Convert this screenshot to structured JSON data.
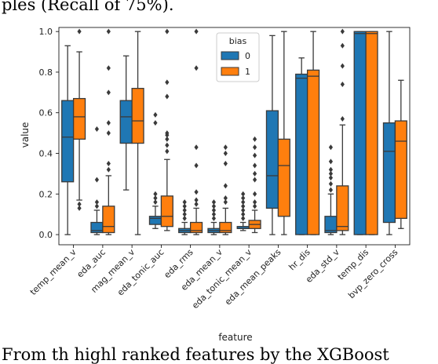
{
  "caption_top": "ples (Recall of 75%).",
  "caption_bottom": "From th highl ranked features by the XGBoost",
  "colors": {
    "bias_0": "#1f77b4",
    "bias_1": "#ff7f0e",
    "line": "#3a3a3a"
  },
  "chart_data": {
    "type": "boxplot",
    "title": "",
    "xlabel": "feature",
    "ylabel": "value",
    "ylim": [
      -0.05,
      1.02
    ],
    "yticks": [
      0.0,
      0.2,
      0.4,
      0.6,
      0.8,
      1.0
    ],
    "ytick_labels": [
      "0.0",
      "0.2",
      "0.4",
      "0.6",
      "0.8",
      "1.0"
    ],
    "grid": false,
    "legend": {
      "title": "bias",
      "placement": "top-center",
      "entries": [
        "0",
        "1"
      ]
    },
    "categories": [
      "temp_mean_v",
      "eda_auc",
      "mag_mean_v",
      "eda_tonic_auc",
      "eda_rms",
      "eda_mean_v",
      "eda_tonic_mean_v",
      "eda_mean_peaks",
      "hr_dis",
      "eda_std_v",
      "temp_dis",
      "bvp_zero_cross"
    ],
    "series": [
      {
        "name": "0",
        "boxes": [
          {
            "whislo": 0.0,
            "q1": 0.26,
            "med": 0.48,
            "q3": 0.66,
            "whishi": 0.93,
            "fliers": []
          },
          {
            "whislo": 0.0,
            "q1": 0.01,
            "med": 0.02,
            "q3": 0.06,
            "whishi": 0.12,
            "fliers": [
              0.14,
              0.16,
              0.27,
              0.52
            ]
          },
          {
            "whislo": 0.22,
            "q1": 0.45,
            "med": 0.58,
            "q3": 0.66,
            "whishi": 0.88,
            "fliers": []
          },
          {
            "whislo": 0.03,
            "q1": 0.05,
            "med": 0.08,
            "q3": 0.09,
            "whishi": 0.14,
            "fliers": [
              0.16,
              0.18,
              0.2,
              0.55,
              0.59
            ]
          },
          {
            "whislo": 0.0,
            "q1": 0.01,
            "med": 0.02,
            "q3": 0.03,
            "whishi": 0.06,
            "fliers": [
              0.08,
              0.1,
              0.12,
              0.14,
              0.16
            ]
          },
          {
            "whislo": 0.0,
            "q1": 0.01,
            "med": 0.02,
            "q3": 0.03,
            "whishi": 0.06,
            "fliers": [
              0.08,
              0.1,
              0.12,
              0.14,
              0.16
            ]
          },
          {
            "whislo": 0.02,
            "q1": 0.03,
            "med": 0.03,
            "q3": 0.04,
            "whishi": 0.06,
            "fliers": [
              0.08,
              0.1,
              0.12,
              0.14,
              0.16,
              0.18,
              0.2
            ]
          },
          {
            "whislo": 0.0,
            "q1": 0.13,
            "med": 0.29,
            "q3": 0.61,
            "whishi": 0.98,
            "fliers": []
          },
          {
            "whislo": 0.0,
            "q1": 0.0,
            "med": 0.77,
            "q3": 0.79,
            "whishi": 0.87,
            "fliers": []
          },
          {
            "whislo": 0.0,
            "q1": 0.01,
            "med": 0.02,
            "q3": 0.09,
            "whishi": 0.2,
            "fliers": [
              0.22,
              0.25,
              0.28,
              0.3,
              0.32,
              0.36,
              0.43
            ]
          },
          {
            "whislo": 0.0,
            "q1": 0.0,
            "med": 0.99,
            "q3": 1.0,
            "whishi": 1.0,
            "fliers": []
          },
          {
            "whislo": 0.0,
            "q1": 0.06,
            "med": 0.41,
            "q3": 0.55,
            "whishi": 1.0,
            "fliers": []
          }
        ]
      },
      {
        "name": "1",
        "boxes": [
          {
            "whislo": 0.17,
            "q1": 0.47,
            "med": 0.58,
            "q3": 0.67,
            "whishi": 0.9,
            "fliers": [
              0.13,
              0.15,
              1.0
            ]
          },
          {
            "whislo": 0.0,
            "q1": 0.01,
            "med": 0.04,
            "q3": 0.14,
            "whishi": 0.29,
            "fliers": [
              0.32,
              0.35,
              0.5,
              0.55,
              0.7,
              0.82,
              1.0
            ]
          },
          {
            "whislo": 0.0,
            "q1": 0.45,
            "med": 0.56,
            "q3": 0.72,
            "whishi": 1.0,
            "fliers": []
          },
          {
            "whislo": 0.02,
            "q1": 0.04,
            "med": 0.09,
            "q3": 0.19,
            "whishi": 0.37,
            "fliers": [
              0.41,
              0.44,
              0.47,
              0.49,
              0.5,
              0.68,
              0.75,
              1.0
            ]
          },
          {
            "whislo": 0.0,
            "q1": 0.01,
            "med": 0.02,
            "q3": 0.06,
            "whishi": 0.13,
            "fliers": [
              0.15,
              0.17,
              0.21,
              0.34,
              0.43,
              0.82,
              1.0
            ]
          },
          {
            "whislo": 0.0,
            "q1": 0.01,
            "med": 0.02,
            "q3": 0.06,
            "whishi": 0.13,
            "fliers": [
              0.16,
              0.18,
              0.24,
              0.35,
              0.4,
              0.43
            ]
          },
          {
            "whislo": 0.01,
            "q1": 0.03,
            "med": 0.05,
            "q3": 0.07,
            "whishi": 0.12,
            "fliers": [
              0.14,
              0.16,
              0.2,
              0.27,
              0.3,
              0.34,
              0.39,
              0.43,
              0.47
            ]
          },
          {
            "whislo": 0.0,
            "q1": 0.09,
            "med": 0.34,
            "q3": 0.47,
            "whishi": 1.0,
            "fliers": []
          },
          {
            "whislo": 0.0,
            "q1": 0.0,
            "med": 0.78,
            "q3": 0.81,
            "whishi": 1.0,
            "fliers": []
          },
          {
            "whislo": 0.0,
            "q1": 0.02,
            "med": 0.04,
            "q3": 0.24,
            "whishi": 0.54,
            "fliers": [
              0.57,
              0.74,
              0.83,
              0.93,
              1.0
            ]
          },
          {
            "whislo": 0.0,
            "q1": 0.0,
            "med": 0.99,
            "q3": 1.0,
            "whishi": 1.0,
            "fliers": []
          },
          {
            "whislo": 0.03,
            "q1": 0.08,
            "med": 0.46,
            "q3": 0.56,
            "whishi": 0.76,
            "fliers": []
          }
        ]
      }
    ]
  }
}
